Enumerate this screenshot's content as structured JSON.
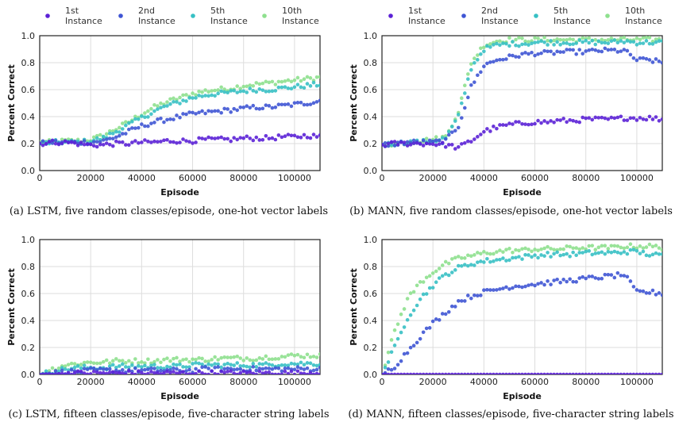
{
  "legend": {
    "entries": [
      {
        "line1": "1st",
        "line2": "Instance",
        "color": "#5b21d6"
      },
      {
        "line1": "2nd",
        "line2": "Instance",
        "color": "#3f55d4"
      },
      {
        "line1": "5th",
        "line2": "Instance",
        "color": "#37c0c4"
      },
      {
        "line1": "10th",
        "line2": "Instance",
        "color": "#8ee08e"
      }
    ]
  },
  "chart_data": [
    {
      "type": "scatter",
      "id": "a",
      "title": "",
      "caption": "(a) LSTM, five random classes/episode, one-hot vector labels",
      "xlabel": "Episode",
      "ylabel": "Percent Correct",
      "xlim": [
        0,
        110000
      ],
      "ylim": [
        0,
        1.0
      ],
      "xticks": [
        0,
        20000,
        40000,
        60000,
        80000,
        100000
      ],
      "xtick_labels": [
        "0",
        "20000",
        "40000",
        "60000",
        "80000",
        "100000"
      ],
      "yticks": [
        0,
        0.2,
        0.4,
        0.6,
        0.8,
        1.0
      ],
      "ytick_labels": [
        "0.0",
        "0.2",
        "0.4",
        "0.6",
        "0.8",
        "1.0"
      ],
      "x": [
        0,
        5000,
        10000,
        15000,
        20000,
        25000,
        30000,
        35000,
        40000,
        45000,
        50000,
        55000,
        60000,
        65000,
        70000,
        75000,
        80000,
        85000,
        90000,
        95000,
        100000,
        105000,
        110000
      ],
      "series": [
        {
          "name": "1st Instance",
          "values": [
            0.2,
            0.21,
            0.21,
            0.2,
            0.19,
            0.19,
            0.2,
            0.2,
            0.21,
            0.21,
            0.22,
            0.22,
            0.22,
            0.23,
            0.23,
            0.23,
            0.24,
            0.24,
            0.24,
            0.25,
            0.25,
            0.26,
            0.25
          ]
        },
        {
          "name": "2nd Instance",
          "values": [
            0.2,
            0.21,
            0.21,
            0.21,
            0.21,
            0.22,
            0.25,
            0.29,
            0.33,
            0.36,
            0.38,
            0.4,
            0.42,
            0.43,
            0.44,
            0.45,
            0.46,
            0.47,
            0.47,
            0.48,
            0.49,
            0.5,
            0.52
          ]
        },
        {
          "name": "5th Instance",
          "values": [
            0.2,
            0.21,
            0.21,
            0.21,
            0.22,
            0.24,
            0.29,
            0.34,
            0.39,
            0.44,
            0.48,
            0.51,
            0.54,
            0.56,
            0.57,
            0.58,
            0.59,
            0.6,
            0.6,
            0.61,
            0.62,
            0.63,
            0.64
          ]
        },
        {
          "name": "10th Instance",
          "values": [
            0.21,
            0.21,
            0.22,
            0.22,
            0.23,
            0.26,
            0.31,
            0.36,
            0.42,
            0.47,
            0.51,
            0.54,
            0.57,
            0.59,
            0.6,
            0.61,
            0.63,
            0.64,
            0.65,
            0.66,
            0.67,
            0.68,
            0.69
          ]
        }
      ]
    },
    {
      "type": "scatter",
      "id": "b",
      "title": "",
      "caption": "(b) MANN, five random classes/episode, one-hot vector labels",
      "xlabel": "Episode",
      "ylabel": "Percent Correct",
      "xlim": [
        0,
        110000
      ],
      "ylim": [
        0,
        1.0
      ],
      "xticks": [
        0,
        20000,
        40000,
        60000,
        80000,
        100000
      ],
      "xtick_labels": [
        "0",
        "20000",
        "40000",
        "60000",
        "80000",
        "100000"
      ],
      "yticks": [
        0,
        0.2,
        0.4,
        0.6,
        0.8,
        1.0
      ],
      "ytick_labels": [
        "0.0",
        "0.2",
        "0.4",
        "0.6",
        "0.8",
        "1.0"
      ],
      "x": [
        0,
        5000,
        10000,
        15000,
        20000,
        25000,
        30000,
        35000,
        40000,
        45000,
        50000,
        55000,
        60000,
        65000,
        70000,
        75000,
        80000,
        85000,
        90000,
        95000,
        100000,
        105000,
        110000
      ],
      "series": [
        {
          "name": "1st Instance",
          "values": [
            0.19,
            0.2,
            0.2,
            0.2,
            0.2,
            0.19,
            0.17,
            0.22,
            0.29,
            0.32,
            0.34,
            0.35,
            0.36,
            0.36,
            0.37,
            0.37,
            0.38,
            0.38,
            0.38,
            0.39,
            0.39,
            0.39,
            0.38
          ]
        },
        {
          "name": "2nd Instance",
          "values": [
            0.19,
            0.2,
            0.21,
            0.21,
            0.21,
            0.22,
            0.33,
            0.62,
            0.78,
            0.82,
            0.84,
            0.86,
            0.87,
            0.87,
            0.88,
            0.88,
            0.88,
            0.89,
            0.89,
            0.89,
            0.82,
            0.82,
            0.8
          ]
        },
        {
          "name": "5th Instance",
          "values": [
            0.19,
            0.2,
            0.21,
            0.21,
            0.22,
            0.24,
            0.4,
            0.76,
            0.9,
            0.93,
            0.94,
            0.94,
            0.95,
            0.95,
            0.95,
            0.95,
            0.95,
            0.95,
            0.95,
            0.96,
            0.95,
            0.95,
            0.95
          ]
        },
        {
          "name": "10th Instance",
          "values": [
            0.19,
            0.2,
            0.21,
            0.22,
            0.23,
            0.25,
            0.44,
            0.8,
            0.93,
            0.96,
            0.97,
            0.97,
            0.97,
            0.97,
            0.97,
            0.97,
            0.97,
            0.97,
            0.97,
            0.97,
            0.97,
            0.97,
            0.97
          ]
        }
      ]
    },
    {
      "type": "scatter",
      "id": "c",
      "title": "",
      "caption": "(c) LSTM, fifteen classes/episode, five-character string labels",
      "xlabel": "Episode",
      "ylabel": "Percent Correct",
      "xlim": [
        0,
        110000
      ],
      "ylim": [
        0,
        1.0
      ],
      "xticks": [
        0,
        20000,
        40000,
        60000,
        80000,
        100000
      ],
      "xtick_labels": [
        "0",
        "20000",
        "40000",
        "60000",
        "80000",
        "100000"
      ],
      "yticks": [
        0,
        0.2,
        0.4,
        0.6,
        0.8,
        1.0
      ],
      "ytick_labels": [
        "0.0",
        "0.2",
        "0.4",
        "0.6",
        "0.8",
        "1.0"
      ],
      "x": [
        0,
        5000,
        10000,
        15000,
        20000,
        25000,
        30000,
        35000,
        40000,
        45000,
        50000,
        55000,
        60000,
        65000,
        70000,
        75000,
        80000,
        85000,
        90000,
        95000,
        100000,
        105000,
        110000
      ],
      "series": [
        {
          "name": "1st Instance",
          "values": [
            0.0,
            0.0,
            0.01,
            0.01,
            0.01,
            0.01,
            0.01,
            0.01,
            0.01,
            0.01,
            0.01,
            0.01,
            0.01,
            0.01,
            0.01,
            0.01,
            0.01,
            0.01,
            0.01,
            0.01,
            0.01,
            0.01,
            0.01
          ]
        },
        {
          "name": "2nd Instance",
          "values": [
            0.0,
            0.01,
            0.02,
            0.02,
            0.03,
            0.03,
            0.03,
            0.03,
            0.03,
            0.03,
            0.03,
            0.03,
            0.03,
            0.04,
            0.04,
            0.04,
            0.04,
            0.04,
            0.04,
            0.04,
            0.04,
            0.04,
            0.04
          ]
        },
        {
          "name": "5th Instance",
          "values": [
            0.0,
            0.02,
            0.04,
            0.05,
            0.05,
            0.05,
            0.06,
            0.06,
            0.06,
            0.06,
            0.06,
            0.06,
            0.07,
            0.07,
            0.07,
            0.07,
            0.07,
            0.07,
            0.07,
            0.08,
            0.08,
            0.08,
            0.08
          ]
        },
        {
          "name": "10th Instance",
          "values": [
            0.0,
            0.04,
            0.07,
            0.08,
            0.09,
            0.09,
            0.1,
            0.1,
            0.1,
            0.1,
            0.11,
            0.11,
            0.11,
            0.11,
            0.12,
            0.12,
            0.12,
            0.12,
            0.13,
            0.13,
            0.14,
            0.14,
            0.14
          ]
        }
      ]
    },
    {
      "type": "scatter",
      "id": "d",
      "title": "",
      "caption": "(d) MANN, fifteen classes/episode, five-character string labels",
      "xlabel": "Episode",
      "ylabel": "Percent Correct",
      "xlim": [
        0,
        110000
      ],
      "ylim": [
        0,
        1.0
      ],
      "xticks": [
        0,
        20000,
        40000,
        60000,
        80000,
        100000
      ],
      "xtick_labels": [
        "0",
        "20000",
        "40000",
        "60000",
        "80000",
        "100000"
      ],
      "yticks": [
        0,
        0.2,
        0.4,
        0.6,
        0.8,
        1.0
      ],
      "ytick_labels": [
        "0.0",
        "0.2",
        "0.4",
        "0.6",
        "0.8",
        "1.0"
      ],
      "x": [
        0,
        5000,
        10000,
        15000,
        20000,
        25000,
        30000,
        35000,
        40000,
        45000,
        50000,
        55000,
        60000,
        65000,
        70000,
        75000,
        80000,
        85000,
        90000,
        95000,
        100000,
        105000,
        110000
      ],
      "series": [
        {
          "name": "1st Instance",
          "values": [
            0.0,
            0.0,
            0.0,
            0.0,
            0.0,
            0.0,
            0.0,
            0.0,
            0.0,
            0.0,
            0.0,
            0.0,
            0.0,
            0.0,
            0.0,
            0.0,
            0.0,
            0.0,
            0.0,
            0.0,
            0.0,
            0.0,
            0.0
          ]
        },
        {
          "name": "2nd Instance",
          "values": [
            0.0,
            0.06,
            0.17,
            0.28,
            0.38,
            0.46,
            0.54,
            0.58,
            0.61,
            0.63,
            0.65,
            0.66,
            0.67,
            0.68,
            0.69,
            0.7,
            0.71,
            0.72,
            0.73,
            0.74,
            0.61,
            0.61,
            0.6
          ]
        },
        {
          "name": "5th Instance",
          "values": [
            0.0,
            0.2,
            0.42,
            0.56,
            0.66,
            0.74,
            0.79,
            0.82,
            0.84,
            0.85,
            0.86,
            0.87,
            0.88,
            0.89,
            0.89,
            0.89,
            0.9,
            0.9,
            0.9,
            0.91,
            0.91,
            0.89,
            0.88
          ]
        },
        {
          "name": "10th Instance",
          "values": [
            0.0,
            0.32,
            0.56,
            0.68,
            0.76,
            0.82,
            0.86,
            0.88,
            0.9,
            0.91,
            0.92,
            0.92,
            0.93,
            0.93,
            0.93,
            0.94,
            0.94,
            0.94,
            0.94,
            0.95,
            0.95,
            0.95,
            0.94
          ]
        }
      ]
    }
  ]
}
